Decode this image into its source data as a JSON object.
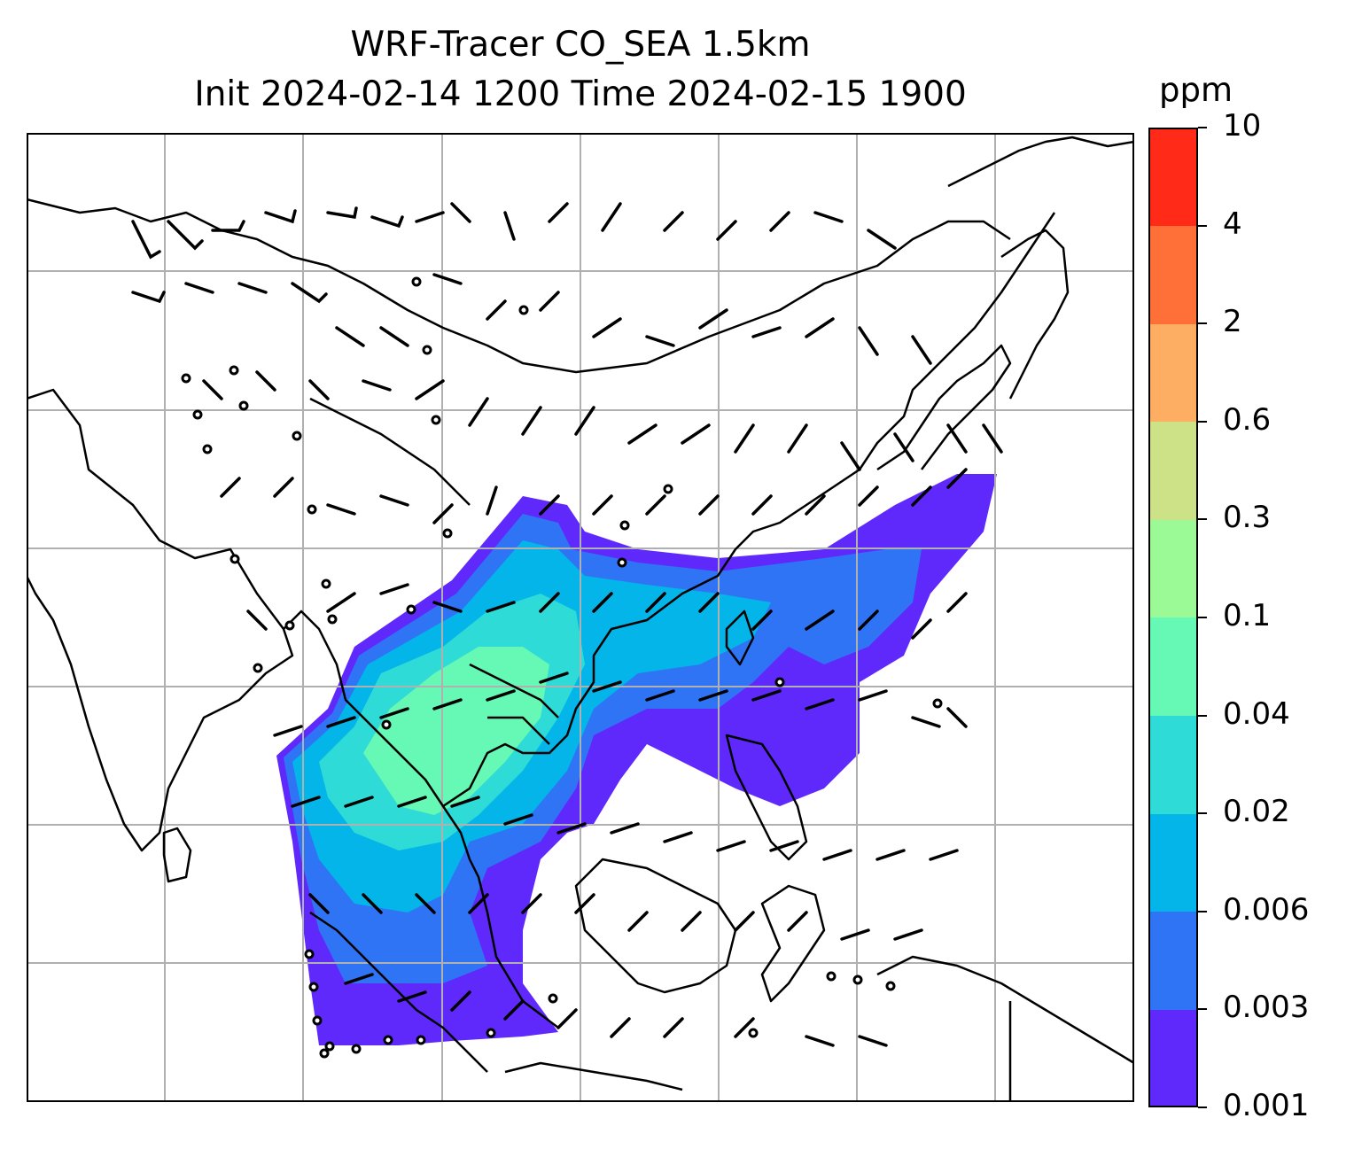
{
  "title_line1": "WRF-Tracer CO_SEA 1.5km",
  "title_line2": "Init 2024-02-14 1200 Time 2024-02-15 1900",
  "colorbar": {
    "unit": "ppm",
    "levels": [
      "0.001",
      "0.003",
      "0.006",
      "0.02",
      "0.04",
      "0.1",
      "0.3",
      "0.6",
      "2",
      "4",
      "10"
    ],
    "colors": [
      "#6029fb",
      "#3074f6",
      "#03b5e8",
      "#2edbd6",
      "#66f8b5",
      "#9bfa95",
      "#cde187",
      "#feae62",
      "#ff7039",
      "#ff2a18"
    ]
  },
  "map": {
    "land_outline_color": "#000000",
    "gridline_color": "#b0b0b0",
    "wind_barb_color": "#000000"
  }
}
